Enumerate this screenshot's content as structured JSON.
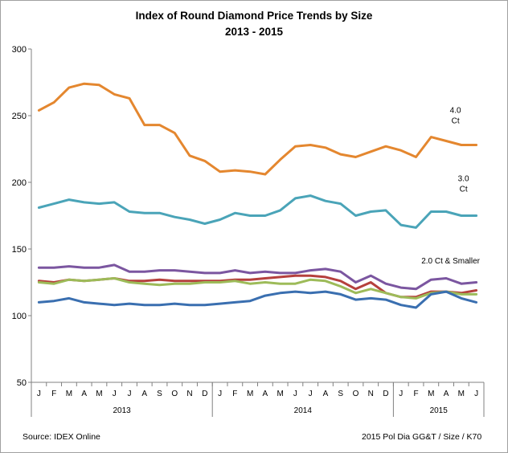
{
  "chart_data": {
    "type": "line",
    "title": "Index of Round Diamond Price Trends by Size",
    "subtitle": "2013 - 2015",
    "ylim": [
      50,
      300
    ],
    "yticks": [
      50,
      100,
      150,
      200,
      250,
      300
    ],
    "grid": false,
    "months": [
      "J",
      "F",
      "M",
      "A",
      "M",
      "J",
      "J",
      "A",
      "S",
      "O",
      "N",
      "D",
      "J",
      "F",
      "M",
      "A",
      "M",
      "J",
      "J",
      "A",
      "S",
      "O",
      "N",
      "D",
      "J",
      "F",
      "M",
      "A",
      "M",
      "J"
    ],
    "years": [
      {
        "label": "2013",
        "start": 0,
        "end": 12
      },
      {
        "label": "2014",
        "start": 12,
        "end": 24
      },
      {
        "label": "2015",
        "start": 24,
        "end": 30
      }
    ],
    "series": [
      {
        "name": "4.0 Ct",
        "label_lines": [
          "4.0",
          "Ct"
        ],
        "color": "#e4872f",
        "values": [
          254,
          260,
          271,
          274,
          273,
          266,
          263,
          243,
          243,
          237,
          220,
          216,
          208,
          209,
          208,
          206,
          217,
          227,
          228,
          226,
          221,
          219,
          223,
          227,
          224,
          219,
          234,
          231,
          228,
          228
        ]
      },
      {
        "name": "3.0 Ct",
        "label_lines": [
          "3.0",
          "Ct"
        ],
        "color": "#4aa4b8",
        "values": [
          181,
          184,
          187,
          185,
          184,
          185,
          178,
          177,
          177,
          174,
          172,
          169,
          172,
          177,
          175,
          175,
          179,
          188,
          190,
          186,
          184,
          175,
          178,
          179,
          168,
          166,
          178,
          178,
          175,
          175
        ]
      },
      {
        "name": "",
        "color": "#7b56a0",
        "values": [
          136,
          136,
          137,
          136,
          136,
          138,
          133,
          133,
          134,
          134,
          133,
          132,
          132,
          134,
          132,
          133,
          132,
          132,
          134,
          135,
          133,
          125,
          130,
          124,
          121,
          120,
          127,
          128,
          124,
          125
        ]
      },
      {
        "name": "",
        "color": "#b5403d",
        "values": [
          126,
          125,
          127,
          126,
          127,
          128,
          126,
          126,
          127,
          126,
          126,
          126,
          126,
          127,
          127,
          128,
          129,
          130,
          130,
          129,
          126,
          120,
          125,
          117,
          114,
          114,
          118,
          118,
          117,
          119
        ]
      },
      {
        "name": "",
        "color": "#9dbb59",
        "values": [
          125,
          124,
          127,
          126,
          127,
          128,
          125,
          124,
          123,
          124,
          124,
          125,
          125,
          126,
          124,
          125,
          124,
          124,
          127,
          126,
          122,
          117,
          120,
          117,
          114,
          113,
          117,
          118,
          116,
          116
        ]
      },
      {
        "name": "",
        "color": "#3a6fb0",
        "values": [
          110,
          111,
          113,
          110,
          109,
          108,
          109,
          108,
          108,
          109,
          108,
          108,
          109,
          110,
          111,
          115,
          117,
          118,
          117,
          118,
          116,
          112,
          113,
          112,
          108,
          106,
          116,
          118,
          113,
          110
        ]
      }
    ],
    "group_label": "2.0 Ct & Smaller",
    "source": "Source:  IDEX Online",
    "credit": "2015 Pol Dia GG&T / Size / K70"
  }
}
